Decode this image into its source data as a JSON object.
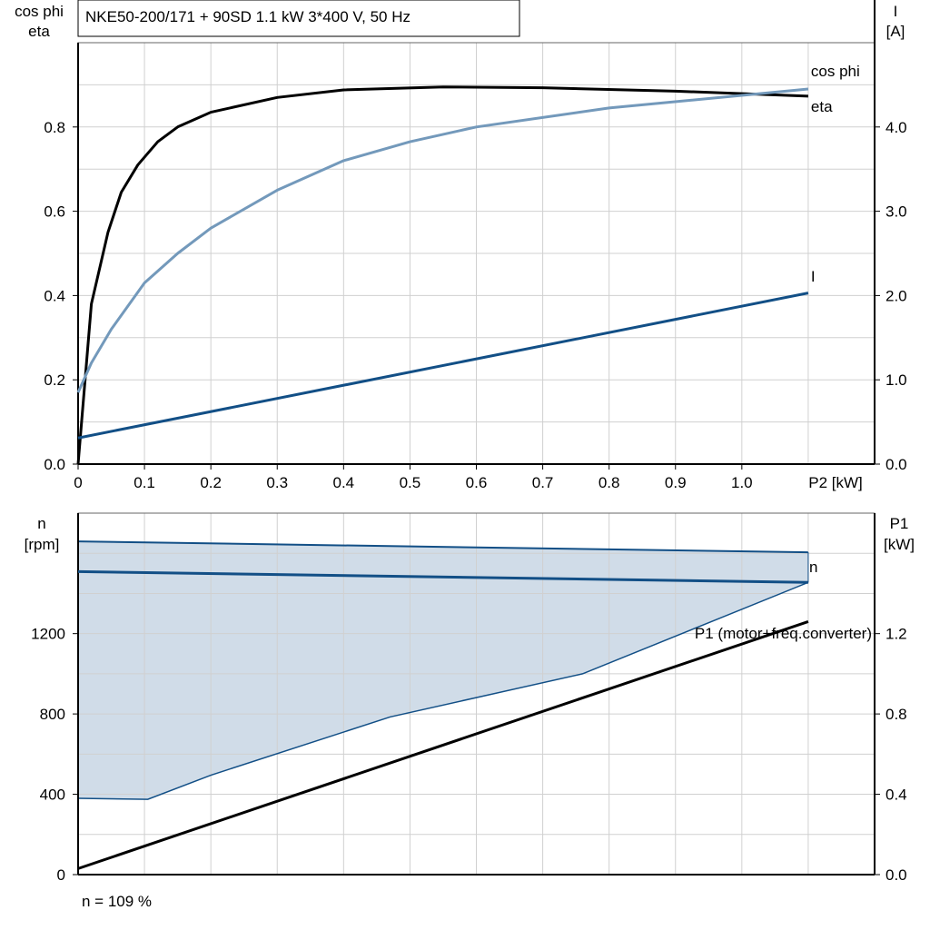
{
  "chart_data": [
    {
      "type": "line",
      "title": "NKE50-200/171 + 90SD   1.1 kW   3*400 V, 50 Hz",
      "ylabel": [
        "cos phi",
        "eta"
      ],
      "y2label": [
        "I",
        "[A]"
      ],
      "xlabel": "P2 [kW]",
      "xlim": [
        0,
        1.2
      ],
      "ylim": [
        0,
        1.0
      ],
      "y2lim": [
        0,
        5.0
      ],
      "xticks": [
        "0",
        "0.1",
        "0.2",
        "0.3",
        "0.4",
        "0.5",
        "0.6",
        "0.7",
        "0.8",
        "0.9",
        "1.0"
      ],
      "yticks": [
        "0.0",
        "0.2",
        "0.4",
        "0.6",
        "0.8"
      ],
      "y2ticks": [
        "0.0",
        "1.0",
        "2.0",
        "3.0",
        "4.0"
      ],
      "grid": true,
      "series": [
        {
          "name": "eta",
          "axis": "left",
          "color": "#000000",
          "points": [
            [
              0,
              0
            ],
            [
              0.02,
              0.38
            ],
            [
              0.045,
              0.55
            ],
            [
              0.065,
              0.645
            ],
            [
              0.09,
              0.71
            ],
            [
              0.12,
              0.765
            ],
            [
              0.15,
              0.8
            ],
            [
              0.2,
              0.835
            ],
            [
              0.3,
              0.87
            ],
            [
              0.4,
              0.888
            ],
            [
              0.55,
              0.895
            ],
            [
              0.7,
              0.893
            ],
            [
              0.9,
              0.885
            ],
            [
              1.1,
              0.873
            ]
          ]
        },
        {
          "name": "cos phi",
          "axis": "left",
          "color": "#7399bb",
          "points": [
            [
              0,
              0.17
            ],
            [
              0.02,
              0.24
            ],
            [
              0.05,
              0.32
            ],
            [
              0.1,
              0.43
            ],
            [
              0.15,
              0.5
            ],
            [
              0.2,
              0.56
            ],
            [
              0.3,
              0.65
            ],
            [
              0.4,
              0.72
            ],
            [
              0.5,
              0.765
            ],
            [
              0.6,
              0.8
            ],
            [
              0.8,
              0.845
            ],
            [
              1.0,
              0.875
            ],
            [
              1.1,
              0.89
            ]
          ]
        },
        {
          "name": "I",
          "axis": "right",
          "color": "#124f86",
          "points": [
            [
              0,
              0.31
            ],
            [
              1.1,
              2.03
            ]
          ]
        }
      ]
    },
    {
      "type": "area",
      "ylabel": [
        "n",
        "[rpm]"
      ],
      "y2label": [
        "P1",
        "[kW]"
      ],
      "xlim": [
        0,
        1.2
      ],
      "ylim": [
        0,
        1800
      ],
      "y2lim": [
        0,
        1.8
      ],
      "yticks": [
        "0",
        "400",
        "800",
        "1200"
      ],
      "y2ticks": [
        "0.0",
        "0.4",
        "0.8",
        "1.2"
      ],
      "grid": true,
      "footnote": "n = 109 %",
      "range_upper": [
        [
          0,
          1659
        ],
        [
          1.1,
          1605
        ]
      ],
      "range_lower": [
        [
          0,
          380
        ],
        [
          0.105,
          375
        ],
        [
          0.2,
          495
        ],
        [
          0.47,
          785
        ],
        [
          0.76,
          1000
        ],
        [
          1.1,
          1455
        ]
      ],
      "series": [
        {
          "name": "n",
          "axis": "left",
          "color": "#124f86",
          "points": [
            [
              0,
              1509
            ],
            [
              1.1,
              1455
            ]
          ]
        },
        {
          "name": "P1 (motor+freq.converter)",
          "axis": "right",
          "color": "#000000",
          "points": [
            [
              0,
              0.03
            ],
            [
              1.1,
              1.26
            ]
          ]
        }
      ],
      "range_color": "#d0dce8"
    }
  ]
}
